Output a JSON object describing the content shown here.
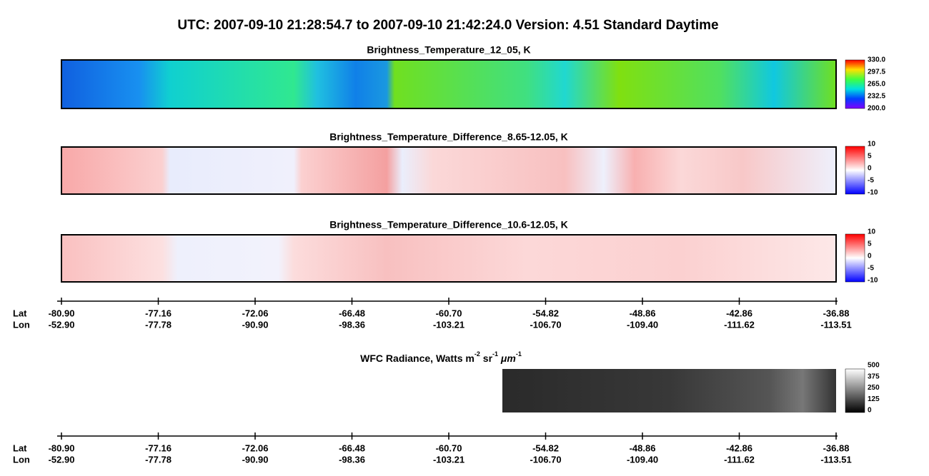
{
  "header": {
    "title": "UTC:  2007-09-10   21:28:54.7  to  2007-09-10   21:42:24.0    Version: 4.51  Standard Daytime"
  },
  "panels": [
    {
      "title": "Brightness_Temperature_12_05, K",
      "colorbar": [
        "330.0",
        "297.5",
        "265.0",
        "232.5",
        "200.0"
      ]
    },
    {
      "title": "Brightness_Temperature_Difference_8.65-12.05, K",
      "colorbar": [
        "10",
        "5",
        "0",
        "-5",
        "-10"
      ]
    },
    {
      "title": "Brightness_Temperature_Difference_10.6-12.05, K",
      "colorbar": [
        "10",
        "5",
        "0",
        "-5",
        "-10"
      ]
    }
  ],
  "axis1": {
    "lat_label": "Lat",
    "lon_label": "Lon",
    "lat": [
      "-80.90",
      "-77.16",
      "-72.06",
      "-66.48",
      "-60.70",
      "-54.82",
      "-48.86",
      "-42.86",
      "-36.88"
    ],
    "lon": [
      "-52.90",
      "-77.78",
      "-90.90",
      "-98.36",
      "-103.21",
      "-106.70",
      "-109.40",
      "-111.62",
      "-113.51"
    ]
  },
  "wfc": {
    "title_parts": [
      "WFC Radiance, Watts m",
      "-2",
      " sr",
      "-1",
      " μm",
      "-1"
    ],
    "colorbar": [
      "500",
      "375",
      "250",
      "125",
      "0"
    ]
  },
  "axis2": {
    "lat_label": "Lat",
    "lon_label": "Lon",
    "lat": [
      "-80.90",
      "-77.16",
      "-72.06",
      "-66.48",
      "-60.70",
      "-54.82",
      "-48.86",
      "-42.86",
      "-36.88"
    ],
    "lon": [
      "-52.90",
      "-77.78",
      "-90.90",
      "-98.36",
      "-103.21",
      "-106.70",
      "-109.40",
      "-111.62",
      "-113.51"
    ]
  }
}
